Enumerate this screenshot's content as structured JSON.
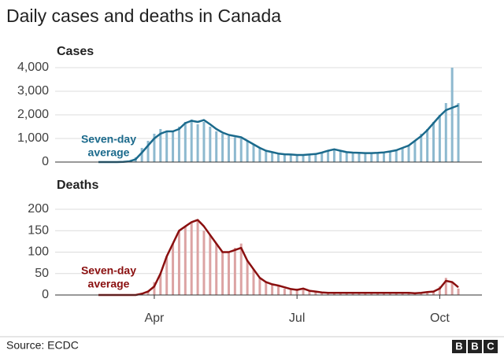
{
  "title": "Daily cases and deaths in Canada",
  "source": "Source: ECDC",
  "logo": [
    "B",
    "B",
    "C"
  ],
  "chart_data": [
    {
      "type": "bar",
      "title": "Cases",
      "annotation": [
        "Seven-day",
        "average"
      ],
      "ylim": [
        0,
        4000
      ],
      "yticks": [
        0,
        {
          "value": 1000,
          "label": "1,000"
        },
        {
          "value": 2000,
          "label": "2,000"
        },
        {
          "value": 3000,
          "label": "3,000"
        },
        {
          "value": 4000,
          "label": "4,000"
        }
      ],
      "grid": true,
      "series": [
        {
          "type": "bar",
          "color": "#8db9cf",
          "values": [
            0,
            0,
            0,
            0,
            10,
            60,
            200,
            600,
            900,
            1200,
            1400,
            1300,
            1300,
            1500,
            1700,
            1800,
            1600,
            1700,
            1500,
            1300,
            1200,
            1100,
            1050,
            1000,
            900,
            750,
            600,
            450,
            400,
            350,
            330,
            320,
            300,
            300,
            330,
            350,
            400,
            500,
            550,
            500,
            450,
            400,
            400,
            400,
            380,
            400,
            420,
            450,
            500,
            600,
            700,
            900,
            1200,
            1400,
            1700,
            2000,
            2500,
            4000,
            2500
          ]
        },
        {
          "type": "line",
          "color": "#1b6a8c",
          "values": [
            0,
            0,
            0,
            0,
            5,
            30,
            120,
            400,
            700,
            1000,
            1200,
            1300,
            1300,
            1400,
            1650,
            1750,
            1700,
            1780,
            1600,
            1400,
            1250,
            1150,
            1100,
            1050,
            900,
            750,
            600,
            480,
            420,
            360,
            330,
            320,
            300,
            300,
            320,
            340,
            400,
            480,
            540,
            480,
            420,
            400,
            390,
            380,
            380,
            390,
            410,
            450,
            500,
            600,
            700,
            900,
            1100,
            1350,
            1650,
            1950,
            2200,
            2300,
            2400
          ]
        }
      ]
    },
    {
      "type": "bar",
      "title": "Deaths",
      "annotation": [
        "Seven-day",
        "average"
      ],
      "ylim": [
        0,
        200
      ],
      "yticks": [
        0,
        50,
        100,
        150,
        200
      ],
      "grid": true,
      "categories": [
        null,
        null,
        null,
        null,
        null,
        null,
        null,
        null,
        null,
        "Apr",
        null,
        null,
        null,
        null,
        null,
        null,
        null,
        null,
        null,
        null,
        null,
        null,
        null,
        null,
        null,
        null,
        null,
        null,
        null,
        null,
        null,
        null,
        "Jul",
        null,
        null,
        null,
        null,
        null,
        null,
        null,
        null,
        null,
        null,
        null,
        null,
        null,
        null,
        null,
        null,
        null,
        null,
        null,
        null,
        null,
        null,
        "Oct",
        null,
        null,
        null
      ],
      "series": [
        {
          "type": "bar",
          "color": "#dca3a3",
          "values": [
            0,
            0,
            0,
            0,
            0,
            0,
            0,
            5,
            10,
            30,
            50,
            90,
            120,
            150,
            160,
            170,
            175,
            150,
            140,
            120,
            100,
            100,
            110,
            120,
            80,
            60,
            40,
            30,
            25,
            20,
            15,
            12,
            15,
            15,
            10,
            8,
            6,
            5,
            5,
            5,
            5,
            5,
            5,
            5,
            5,
            5,
            5,
            5,
            5,
            5,
            5,
            5,
            5,
            7,
            10,
            20,
            40,
            30,
            15
          ]
        },
        {
          "type": "line",
          "color": "#8a0f0f",
          "values": [
            0,
            0,
            0,
            0,
            0,
            0,
            0,
            3,
            8,
            20,
            50,
            90,
            120,
            150,
            160,
            170,
            175,
            160,
            140,
            120,
            100,
            100,
            105,
            110,
            80,
            60,
            40,
            30,
            25,
            22,
            18,
            14,
            12,
            15,
            10,
            8,
            6,
            5,
            5,
            5,
            5,
            5,
            5,
            5,
            5,
            5,
            5,
            5,
            5,
            5,
            5,
            4,
            5,
            7,
            8,
            15,
            33,
            30,
            18
          ]
        }
      ]
    }
  ]
}
